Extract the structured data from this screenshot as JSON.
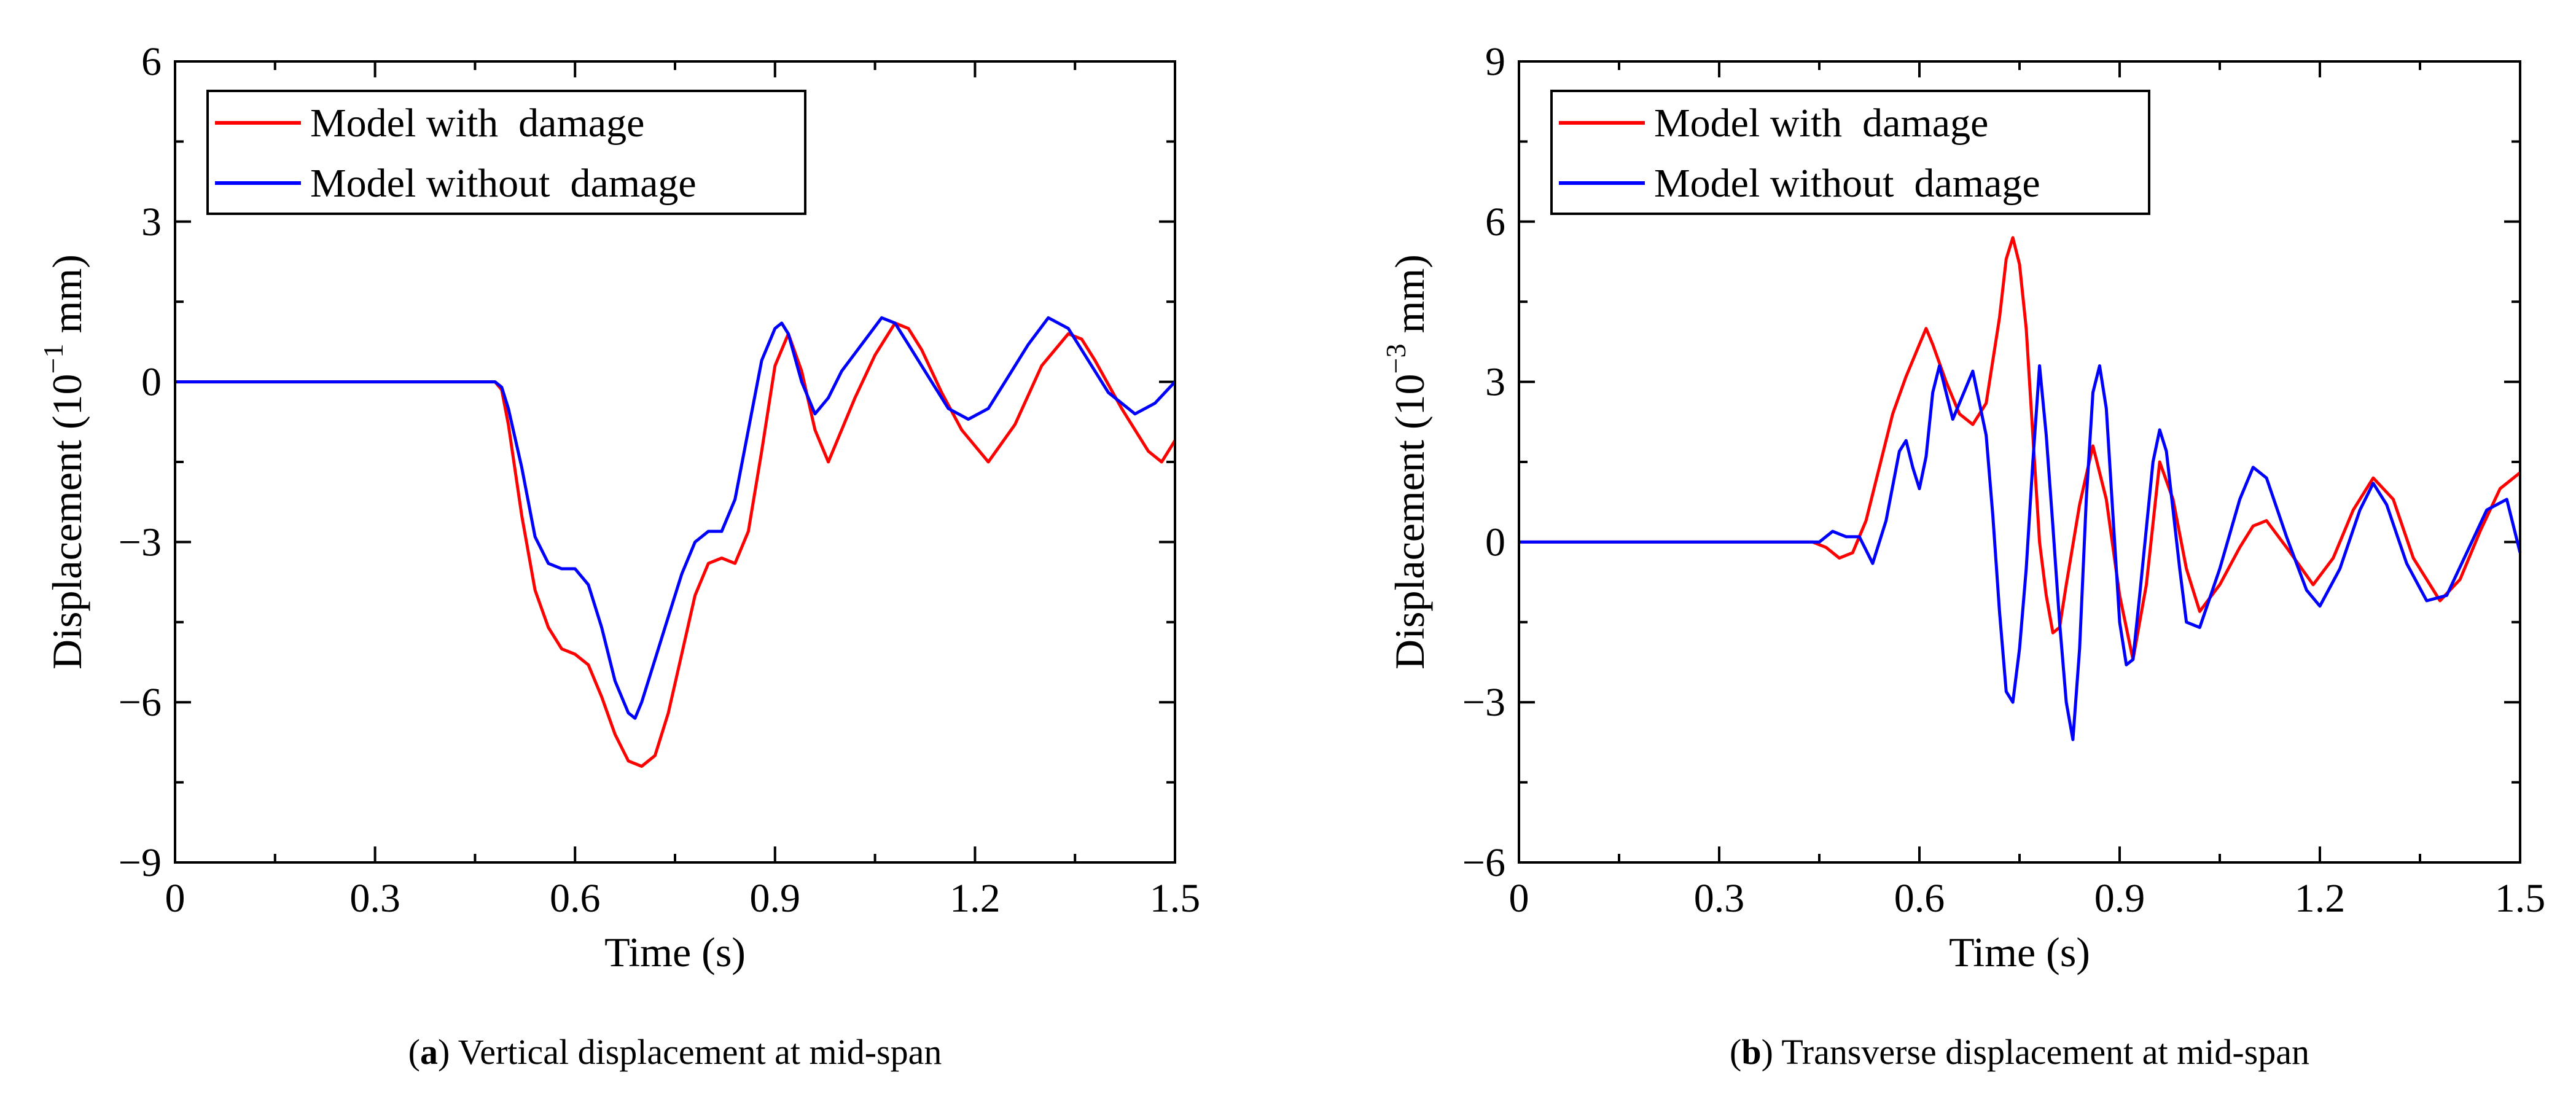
{
  "chart_data": [
    {
      "id": "a",
      "type": "line",
      "xlabel": "Time (s)",
      "ylabel_main": "Displacement (10",
      "ylabel_exp": "−1",
      "ylabel_unit": " mm)",
      "xlim": [
        0,
        1.5
      ],
      "ylim": [
        -9,
        6
      ],
      "xticks": [
        0,
        0.3,
        0.6,
        0.9,
        1.2,
        1.5
      ],
      "xtick_labels": [
        "0",
        "0.3",
        "0.6",
        "0.9",
        "1.2",
        "1.5"
      ],
      "yticks": [
        -9,
        -6,
        -3,
        0,
        3,
        6
      ],
      "ytick_labels": [
        "−9",
        "−6",
        "−3",
        "0",
        "3",
        "6"
      ],
      "legend_position": "top-left",
      "caption_letter": "a",
      "caption_text": "Vertical displacement at mid-span",
      "series": [
        {
          "name": "Model with  damage",
          "color": "#ff0000",
          "x": [
            0,
            0.48,
            0.49,
            0.5,
            0.52,
            0.54,
            0.56,
            0.58,
            0.6,
            0.62,
            0.64,
            0.66,
            0.68,
            0.7,
            0.72,
            0.74,
            0.76,
            0.78,
            0.8,
            0.82,
            0.84,
            0.86,
            0.88,
            0.9,
            0.92,
            0.94,
            0.96,
            0.98,
            1.0,
            1.02,
            1.05,
            1.08,
            1.1,
            1.12,
            1.15,
            1.18,
            1.22,
            1.26,
            1.3,
            1.34,
            1.36,
            1.38,
            1.42,
            1.46,
            1.48,
            1.5
          ],
          "y": [
            0,
            0,
            -0.15,
            -0.8,
            -2.5,
            -3.9,
            -4.6,
            -5.0,
            -5.1,
            -5.3,
            -5.9,
            -6.6,
            -7.1,
            -7.2,
            -7.0,
            -6.2,
            -5.1,
            -4.0,
            -3.4,
            -3.3,
            -3.4,
            -2.8,
            -1.3,
            0.3,
            0.9,
            0.2,
            -0.9,
            -1.5,
            -0.9,
            -0.3,
            0.5,
            1.1,
            1.0,
            0.6,
            -0.2,
            -0.9,
            -1.5,
            -0.8,
            0.3,
            0.9,
            0.8,
            0.4,
            -0.5,
            -1.3,
            -1.5,
            -1.1
          ]
        },
        {
          "name": "Model without  damage",
          "color": "#0000ff",
          "x": [
            0,
            0.48,
            0.49,
            0.5,
            0.52,
            0.54,
            0.56,
            0.58,
            0.6,
            0.62,
            0.64,
            0.66,
            0.68,
            0.69,
            0.7,
            0.72,
            0.74,
            0.76,
            0.78,
            0.8,
            0.82,
            0.84,
            0.86,
            0.88,
            0.9,
            0.91,
            0.92,
            0.94,
            0.96,
            0.98,
            1.0,
            1.03,
            1.06,
            1.08,
            1.1,
            1.13,
            1.16,
            1.19,
            1.22,
            1.25,
            1.28,
            1.31,
            1.34,
            1.37,
            1.4,
            1.44,
            1.47,
            1.5
          ],
          "y": [
            0,
            0,
            -0.1,
            -0.5,
            -1.6,
            -2.9,
            -3.4,
            -3.5,
            -3.5,
            -3.8,
            -4.6,
            -5.6,
            -6.2,
            -6.3,
            -6.0,
            -5.2,
            -4.4,
            -3.6,
            -3.0,
            -2.8,
            -2.8,
            -2.2,
            -0.9,
            0.4,
            1.0,
            1.1,
            0.9,
            0.0,
            -0.6,
            -0.3,
            0.2,
            0.7,
            1.2,
            1.1,
            0.7,
            0.1,
            -0.5,
            -0.7,
            -0.5,
            0.1,
            0.7,
            1.2,
            1.0,
            0.4,
            -0.2,
            -0.6,
            -0.4,
            0.0
          ]
        }
      ]
    },
    {
      "id": "b",
      "type": "line",
      "xlabel": "Time (s)",
      "ylabel_main": "Displacement (10",
      "ylabel_exp": "−3",
      "ylabel_unit": " mm)",
      "xlim": [
        0,
        1.5
      ],
      "ylim": [
        -6,
        9
      ],
      "xticks": [
        0,
        0.3,
        0.6,
        0.9,
        1.2,
        1.5
      ],
      "xtick_labels": [
        "0",
        "0.3",
        "0.6",
        "0.9",
        "1.2",
        "1.5"
      ],
      "yticks": [
        -6,
        -3,
        0,
        3,
        6,
        9
      ],
      "ytick_labels": [
        "−6",
        "−3",
        "0",
        "3",
        "6",
        "9"
      ],
      "legend_position": "top-left",
      "caption_letter": "b",
      "caption_text": "Transverse displacement at mid-span",
      "series": [
        {
          "name": "Model with  damage",
          "color": "#ff0000",
          "x": [
            0,
            0.44,
            0.46,
            0.48,
            0.5,
            0.52,
            0.54,
            0.56,
            0.58,
            0.6,
            0.61,
            0.62,
            0.64,
            0.66,
            0.68,
            0.7,
            0.72,
            0.73,
            0.74,
            0.75,
            0.76,
            0.77,
            0.78,
            0.79,
            0.8,
            0.81,
            0.82,
            0.84,
            0.86,
            0.88,
            0.9,
            0.92,
            0.94,
            0.96,
            0.98,
            1.0,
            1.02,
            1.05,
            1.08,
            1.1,
            1.12,
            1.15,
            1.19,
            1.22,
            1.25,
            1.28,
            1.31,
            1.34,
            1.38,
            1.41,
            1.44,
            1.47,
            1.5
          ],
          "y": [
            0,
            0,
            -0.1,
            -0.3,
            -0.2,
            0.4,
            1.4,
            2.4,
            3.1,
            3.7,
            4.0,
            3.7,
            3.0,
            2.4,
            2.2,
            2.6,
            4.2,
            5.3,
            5.7,
            5.2,
            4.0,
            2.0,
            0.0,
            -1.0,
            -1.7,
            -1.6,
            -0.8,
            0.7,
            1.8,
            0.8,
            -1.0,
            -2.2,
            -0.8,
            1.5,
            0.8,
            -0.5,
            -1.3,
            -0.8,
            -0.1,
            0.3,
            0.4,
            -0.1,
            -0.8,
            -0.3,
            0.6,
            1.2,
            0.8,
            -0.3,
            -1.1,
            -0.7,
            0.2,
            1.0,
            1.3
          ]
        },
        {
          "name": "Model without  damage",
          "color": "#0000ff",
          "x": [
            0,
            0.43,
            0.45,
            0.47,
            0.49,
            0.51,
            0.53,
            0.55,
            0.57,
            0.58,
            0.59,
            0.6,
            0.61,
            0.62,
            0.63,
            0.64,
            0.65,
            0.66,
            0.68,
            0.7,
            0.71,
            0.72,
            0.73,
            0.74,
            0.75,
            0.76,
            0.77,
            0.78,
            0.79,
            0.8,
            0.81,
            0.82,
            0.83,
            0.84,
            0.85,
            0.86,
            0.87,
            0.88,
            0.89,
            0.9,
            0.91,
            0.92,
            0.93,
            0.95,
            0.96,
            0.97,
            0.99,
            1.0,
            1.02,
            1.05,
            1.08,
            1.1,
            1.12,
            1.15,
            1.18,
            1.2,
            1.23,
            1.26,
            1.28,
            1.3,
            1.33,
            1.36,
            1.39,
            1.42,
            1.45,
            1.48,
            1.5
          ],
          "y": [
            0,
            0,
            0.0,
            0.2,
            0.1,
            0.1,
            -0.4,
            0.4,
            1.7,
            1.9,
            1.4,
            1.0,
            1.6,
            2.8,
            3.3,
            2.8,
            2.3,
            2.6,
            3.2,
            2.0,
            0.5,
            -1.3,
            -2.8,
            -3.0,
            -2.0,
            -0.5,
            1.5,
            3.3,
            2.0,
            0.3,
            -1.5,
            -3.0,
            -3.7,
            -2.0,
            0.8,
            2.8,
            3.3,
            2.5,
            0.5,
            -1.5,
            -2.3,
            -2.2,
            -1.0,
            1.5,
            2.1,
            1.7,
            -0.5,
            -1.5,
            -1.6,
            -0.5,
            0.8,
            1.4,
            1.2,
            0.1,
            -0.9,
            -1.2,
            -0.5,
            0.6,
            1.1,
            0.7,
            -0.4,
            -1.1,
            -1.0,
            -0.2,
            0.6,
            0.8,
            -0.2
          ]
        }
      ]
    }
  ]
}
